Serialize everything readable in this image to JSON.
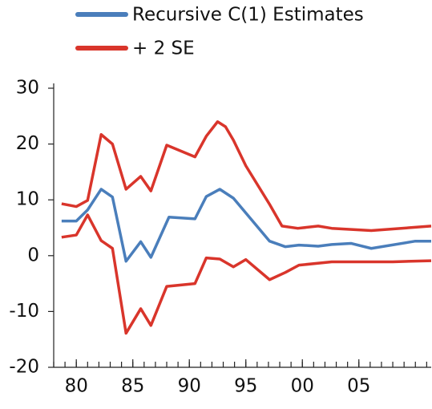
{
  "chart_data": {
    "type": "line",
    "x_minor_tick_step": 1,
    "xlim": [
      1978,
      2011.4
    ],
    "ylim": [
      -20,
      30
    ],
    "xticks": [
      {
        "value": 1980,
        "label": "80"
      },
      {
        "value": 1985,
        "label": "85"
      },
      {
        "value": 1990,
        "label": "90"
      },
      {
        "value": 1995,
        "label": "95"
      },
      {
        "value": 2000,
        "label": "00"
      },
      {
        "value": 2005,
        "label": "05"
      }
    ],
    "yticks": [
      30,
      20,
      10,
      0,
      -10,
      -20
    ],
    "legend": "top",
    "series": [
      {
        "name": "Recursive C(1) Estimates",
        "color": "#4a7ebb",
        "x": [
          1978.7,
          1980.0,
          1981.0,
          1982.2,
          1983.2,
          1984.4,
          1985.7,
          1986.6,
          1988.2,
          1990.5,
          1991.5,
          1992.7,
          1993.9,
          1997.1,
          1998.5,
          1999.7,
          2001.4,
          2002.6,
          2004.3,
          2006.1,
          2010.0,
          2011.4
        ],
        "values": [
          6.2,
          6.2,
          8.2,
          11.9,
          10.5,
          -1,
          2.5,
          -0.3,
          6.9,
          6.6,
          10.6,
          11.9,
          10.3,
          2.6,
          1.6,
          1.9,
          1.7,
          2,
          2.2,
          1.3,
          2.6,
          2.6
        ]
      },
      {
        "name": "+ 2 SE",
        "color": "#d9352b",
        "x": [
          1978.7,
          1980.0,
          1981.0,
          1982.2,
          1983.2,
          1984.4,
          1985.7,
          1986.6,
          1988.0,
          1990.5,
          1991.5,
          1992.5,
          1993.2,
          1993.9,
          1995.0,
          1997.1,
          1998.2,
          1999.6,
          2001.4,
          2002.6,
          2006.1,
          2011.4
        ],
        "values": [
          9.3,
          8.8,
          9.9,
          21.7,
          20,
          11.9,
          14.2,
          11.6,
          19.8,
          17.7,
          21.4,
          24,
          23.1,
          20.7,
          16.1,
          9.2,
          5.3,
          4.9,
          5.3,
          4.9,
          4.5,
          5.3
        ]
      },
      {
        "color": "#d9352b",
        "x": [
          1978.7,
          1980.0,
          1981.0,
          1982.2,
          1983.2,
          1984.4,
          1985.7,
          1986.6,
          1988.0,
          1990.5,
          1991.5,
          1992.7,
          1993.9,
          1995.0,
          1997.1,
          1998.5,
          1999.7,
          2002.6,
          2008.0,
          2011.4
        ],
        "values": [
          3.3,
          3.7,
          7.3,
          2.7,
          1.3,
          -13.9,
          -9.5,
          -12.5,
          -5.5,
          -5,
          -0.4,
          -0.6,
          -2,
          -0.7,
          -4.3,
          -3,
          -1.7,
          -1.1,
          -1.1,
          -0.9
        ]
      }
    ]
  }
}
